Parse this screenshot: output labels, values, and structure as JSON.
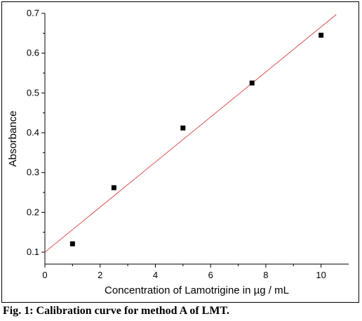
{
  "caption": "Fig. 1: Calibration curve for method A of LMT.",
  "colors": {
    "fit_line": "#d9534f",
    "points": "#000000",
    "axis": "#000000"
  },
  "chart_data": {
    "type": "scatter",
    "xlabel": "Concentration of Lamotrigine in µg / mL",
    "ylabel": "Absorbance",
    "xlim": [
      0,
      11
    ],
    "ylim": [
      0.07,
      0.7
    ],
    "x_ticks": [
      0,
      2,
      4,
      6,
      8,
      10
    ],
    "y_ticks": [
      0.1,
      0.2,
      0.3,
      0.4,
      0.5,
      0.6,
      0.7
    ],
    "x_tick_labels": [
      "0",
      "2",
      "4",
      "6",
      "8",
      "10"
    ],
    "y_tick_labels": [
      "0.1",
      "0.2",
      "0.3",
      "0.4",
      "0.5",
      "0.6",
      "0.7"
    ],
    "grid": false,
    "series": [
      {
        "marker": "square",
        "x": [
          1,
          2.5,
          5,
          7.5,
          10
        ],
        "y": [
          0.121,
          0.262,
          0.412,
          0.525,
          0.645
        ]
      }
    ],
    "fit_line": {
      "x": [
        0,
        10.55
      ],
      "y": [
        0.1,
        0.697
      ]
    }
  }
}
